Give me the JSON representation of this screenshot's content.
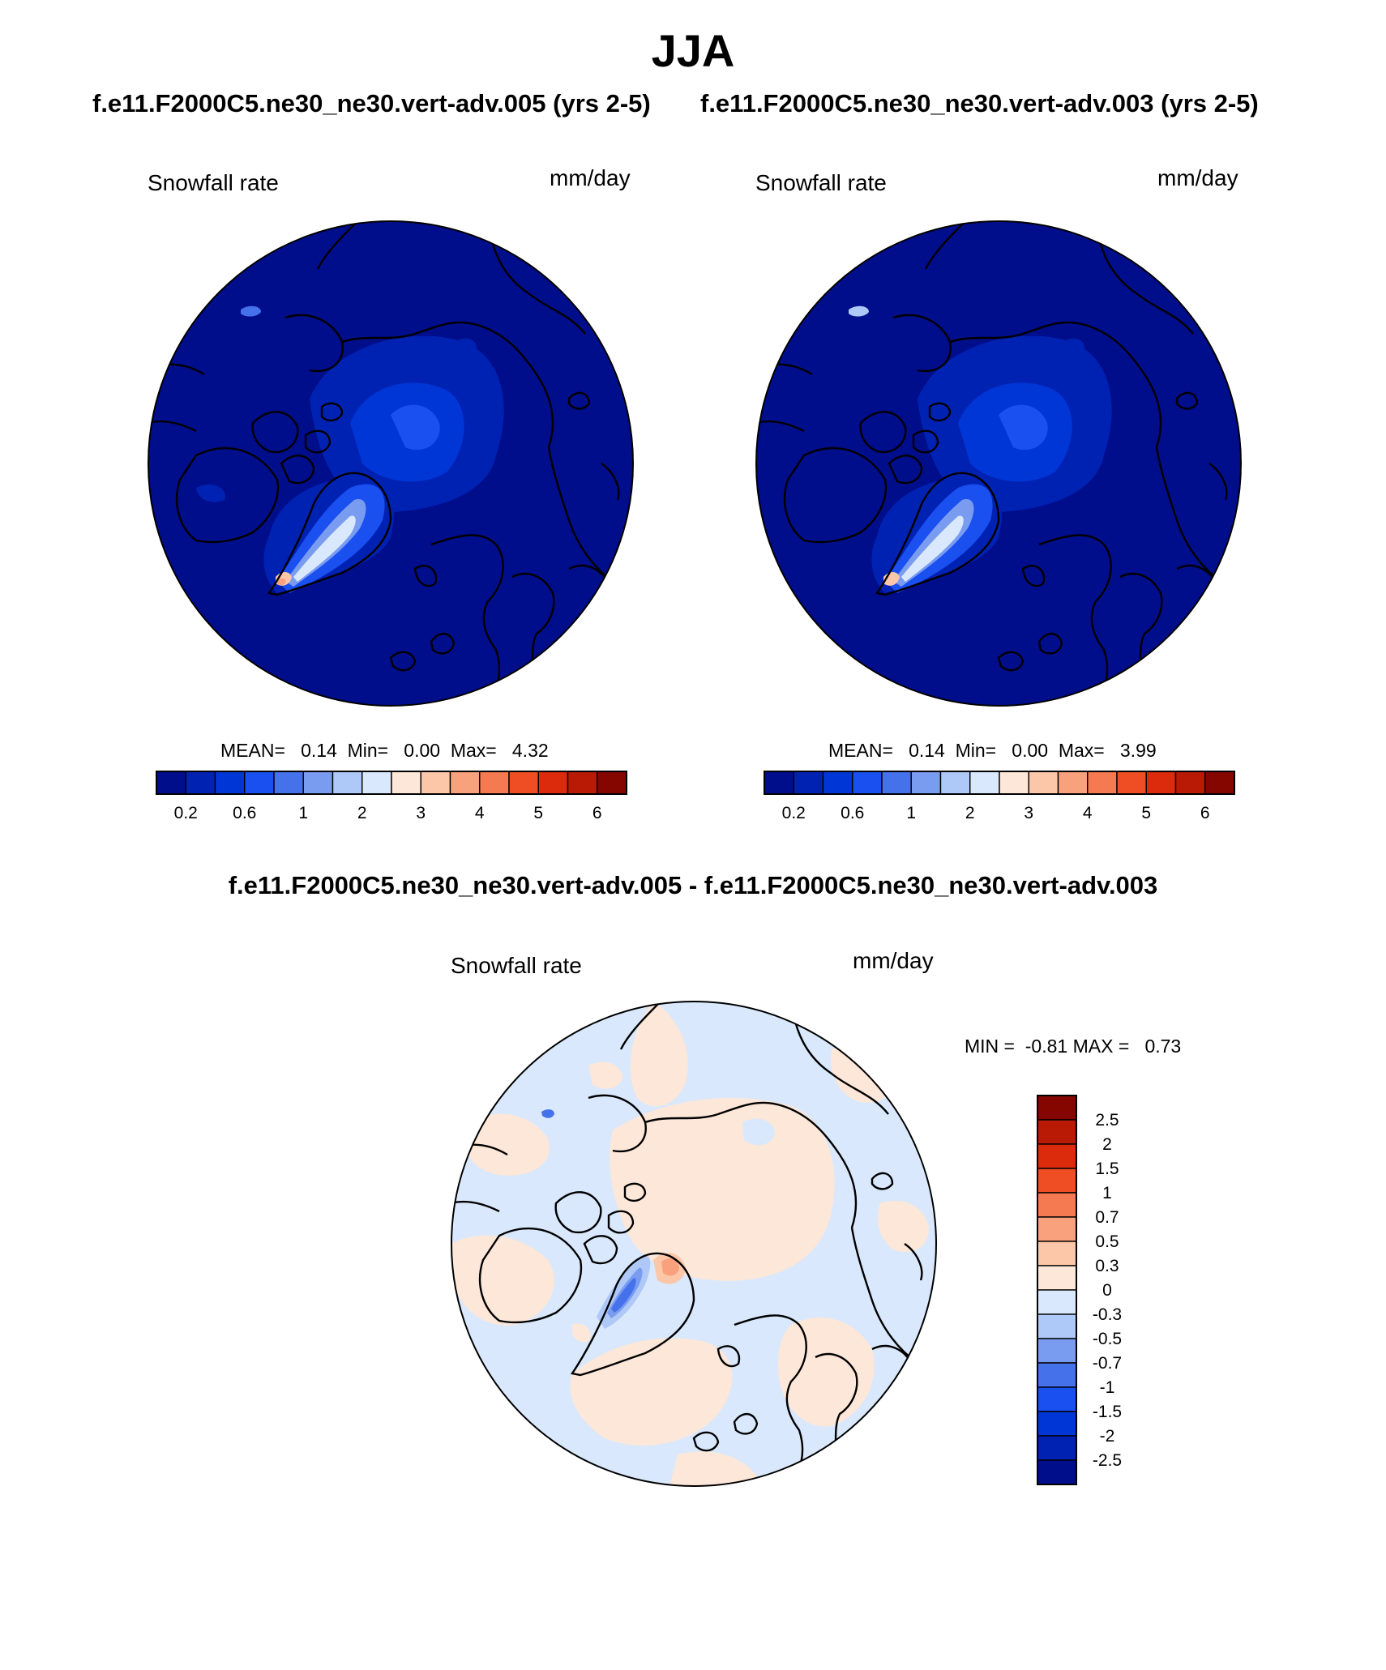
{
  "figure": {
    "title": "JJA",
    "difference_title": "f.e11.F2000C5.ne30_ne30.vert-adv.005 - f.e11.F2000C5.ne30_ne30.vert-adv.003"
  },
  "chart_data": [
    {
      "type": "heatmap",
      "projection": "north-polar-stereographic",
      "title": "f.e11.F2000C5.ne30_ne30.vert-adv.005 (yrs 2-5)",
      "left_label": "Snowfall rate",
      "right_label": "mm/day",
      "stats": {
        "mean_label": "MEAN=",
        "mean": "0.14",
        "min_label": "Min=",
        "min": "0.00",
        "max_label": "Max=",
        "max": "4.32"
      },
      "colorbar": {
        "orientation": "horizontal",
        "levels": [
          "0.2",
          "0.6",
          "1",
          "2",
          "3",
          "4",
          "5",
          "6"
        ],
        "colors": [
          "#000e8c",
          "#0022b3",
          "#0036d6",
          "#1a4ff0",
          "#4571ea",
          "#7a9cf0",
          "#aec8f7",
          "#d9e8fc",
          "#fde7d8",
          "#fcc6a8",
          "#f9a07c",
          "#f57a52",
          "#ef4d24",
          "#dc2a0c",
          "#b81a05",
          "#850500"
        ]
      }
    },
    {
      "type": "heatmap",
      "projection": "north-polar-stereographic",
      "title": "f.e11.F2000C5.ne30_ne30.vert-adv.003 (yrs 2-5)",
      "left_label": "Snowfall rate",
      "right_label": "mm/day",
      "stats": {
        "mean_label": "MEAN=",
        "mean": "0.14",
        "min_label": "Min=",
        "min": "0.00",
        "max_label": "Max=",
        "max": "3.99"
      },
      "colorbar": {
        "orientation": "horizontal",
        "levels": [
          "0.2",
          "0.6",
          "1",
          "2",
          "3",
          "4",
          "5",
          "6"
        ],
        "colors": [
          "#000e8c",
          "#0022b3",
          "#0036d6",
          "#1a4ff0",
          "#4571ea",
          "#7a9cf0",
          "#aec8f7",
          "#d9e8fc",
          "#fde7d8",
          "#fcc6a8",
          "#f9a07c",
          "#f57a52",
          "#ef4d24",
          "#dc2a0c",
          "#b81a05",
          "#850500"
        ]
      }
    },
    {
      "type": "heatmap",
      "projection": "north-polar-stereographic",
      "left_label": "Snowfall rate",
      "right_label": "mm/day",
      "stats": {
        "min_label": "MIN =",
        "min": "-0.81",
        "max_label": "MAX =",
        "max": "0.73"
      },
      "colorbar": {
        "orientation": "vertical",
        "levels": [
          "2.5",
          "2",
          "1.5",
          "1",
          "0.7",
          "0.5",
          "0.3",
          "0",
          "-0.3",
          "-0.5",
          "-0.7",
          "-1",
          "-1.5",
          "-2",
          "-2.5"
        ],
        "colors": [
          "#850500",
          "#b81a05",
          "#dc2a0c",
          "#ef4d24",
          "#f57a52",
          "#f9a07c",
          "#fcc6a8",
          "#fde7d8",
          "#d9e8fc",
          "#aec8f7",
          "#7a9cf0",
          "#4571ea",
          "#1a4ff0",
          "#0036d6",
          "#0022b3",
          "#000e8c"
        ]
      }
    }
  ]
}
